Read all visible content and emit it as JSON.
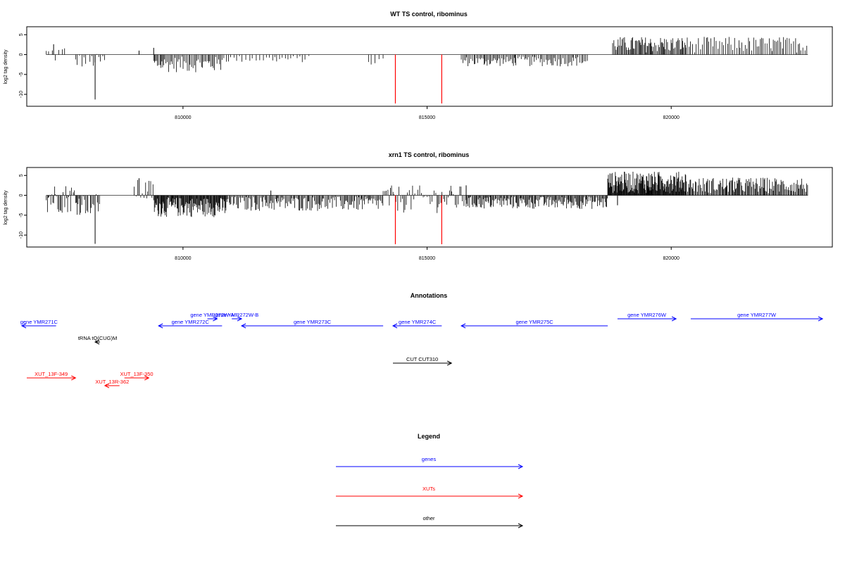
{
  "colors": {
    "genes": "#0000ff",
    "xuts": "#ff0000",
    "other": "#000000",
    "highlight": "#ff0000",
    "bars": "#000000"
  },
  "chart_data": [
    {
      "type": "bar",
      "title": "WT TS control, ribominus",
      "ylabel": "log2 tag density",
      "xlim": [
        806800,
        823300
      ],
      "ylim": [
        -13,
        7
      ],
      "x_ticks": [
        810000,
        815000,
        820000
      ],
      "x_tick_labels": [
        "810000",
        "815000",
        "820000"
      ],
      "y_ticks": [
        -10,
        -5,
        0,
        5
      ],
      "y_tick_labels": [
        "-10",
        "-5",
        "0",
        "5"
      ],
      "highlight_positions": [
        814350,
        815300
      ],
      "highlight_value": -12.3,
      "segments": [
        {
          "start": 807200,
          "end": 807600,
          "min": -2.5,
          "max": 2.5,
          "step": 55
        },
        {
          "start": 807800,
          "end": 808400,
          "min": -3.5,
          "max": 0.2,
          "step": 40
        },
        {
          "start": 809400,
          "end": 810800,
          "min": -4.5,
          "max": -0.5,
          "step": 25
        },
        {
          "start": 810800,
          "end": 812600,
          "min": -2.0,
          "max": -0.3,
          "step": 60
        },
        {
          "start": 813800,
          "end": 814100,
          "min": -3.0,
          "max": -0.5,
          "step": 60
        },
        {
          "start": 815700,
          "end": 816800,
          "min": -3.0,
          "max": -0.5,
          "step": 25
        },
        {
          "start": 816800,
          "end": 818300,
          "min": -3.0,
          "max": -0.5,
          "step": 30
        },
        {
          "start": 818800,
          "end": 820300,
          "min": 0.5,
          "max": 4.5,
          "step": 20
        },
        {
          "start": 820300,
          "end": 822800,
          "min": 0.5,
          "max": 4.5,
          "step": 35
        }
      ],
      "spikes": [
        {
          "x": 808200,
          "y": -11.3
        },
        {
          "x": 809100,
          "y": 1.0
        },
        {
          "x": 809400,
          "y": 1.7
        },
        {
          "x": 807350,
          "y": 2.6
        }
      ]
    },
    {
      "type": "bar",
      "title": "xrn1 TS control, ribominus",
      "ylabel": "log2 tag density",
      "xlim": [
        806800,
        823300
      ],
      "ylim": [
        -13,
        7
      ],
      "x_ticks": [
        810000,
        815000,
        820000
      ],
      "x_tick_labels": [
        "810000",
        "815000",
        "820000"
      ],
      "y_ticks": [
        -10,
        -5,
        0,
        5
      ],
      "y_tick_labels": [
        "-10",
        "-5",
        "0",
        "5"
      ],
      "highlight_positions": [
        814350,
        815300
      ],
      "highlight_value": -12.3,
      "segments": [
        {
          "start": 807200,
          "end": 807800,
          "min": -4.5,
          "max": 3.0,
          "step": 20
        },
        {
          "start": 807800,
          "end": 808300,
          "min": -5.0,
          "max": 0.5,
          "step": 25
        },
        {
          "start": 809000,
          "end": 809400,
          "min": -2.0,
          "max": 4.0,
          "step": 30
        },
        {
          "start": 809400,
          "end": 810900,
          "min": -5.5,
          "max": -0.5,
          "step": 12
        },
        {
          "start": 810900,
          "end": 814100,
          "min": -4.0,
          "max": -0.3,
          "step": 22
        },
        {
          "start": 814100,
          "end": 815800,
          "min": -4.5,
          "max": 2.5,
          "step": 30
        },
        {
          "start": 815800,
          "end": 818700,
          "min": -3.5,
          "max": -0.3,
          "step": 18
        },
        {
          "start": 818700,
          "end": 820300,
          "min": 0.5,
          "max": 6.0,
          "step": 10
        },
        {
          "start": 820300,
          "end": 822800,
          "min": 0.5,
          "max": 4.5,
          "step": 18
        }
      ],
      "spikes": [
        {
          "x": 808200,
          "y": -12.2
        },
        {
          "x": 809100,
          "y": 4.3
        },
        {
          "x": 811800,
          "y": 1.2
        },
        {
          "x": 815800,
          "y": 2.5
        },
        {
          "x": 818900,
          "y": -2.5
        }
      ]
    }
  ],
  "annotations": {
    "title": "Annotations",
    "features": [
      {
        "label": "gene YMR271C",
        "start": 806700,
        "end": 807400,
        "strand": "-",
        "type": "genes",
        "row": 1
      },
      {
        "label": "gene YMR272W-A",
        "start": 810500,
        "end": 810700,
        "strand": "+",
        "type": "genes",
        "row": 0
      },
      {
        "label": "gene YMR272W-B",
        "start": 811000,
        "end": 811200,
        "strand": "+",
        "type": "genes",
        "row": 0
      },
      {
        "label": "gene YMR272C",
        "start": 809500,
        "end": 810800,
        "strand": "-",
        "type": "genes",
        "row": 1
      },
      {
        "label": "gene YMR273C",
        "start": 811200,
        "end": 814100,
        "strand": "-",
        "type": "genes",
        "row": 1
      },
      {
        "label": "gene YMR274C",
        "start": 814300,
        "end": 815300,
        "strand": "-",
        "type": "genes",
        "row": 1
      },
      {
        "label": "gene YMR275C",
        "start": 815700,
        "end": 818700,
        "strand": "-",
        "type": "genes",
        "row": 1
      },
      {
        "label": "gene YMR276W",
        "start": 818900,
        "end": 820100,
        "strand": "+",
        "type": "genes",
        "row": 0
      },
      {
        "label": "gene YMR277W",
        "start": 820400,
        "end": 823100,
        "strand": "+",
        "type": "genes",
        "row": 0
      },
      {
        "label": "tRNA tQ(CUG)M",
        "start": 808200,
        "end": 808300,
        "strand": "-",
        "type": "other",
        "row": 2
      },
      {
        "label": "CUT CUT310",
        "start": 814300,
        "end": 815500,
        "strand": "+",
        "type": "other",
        "row": 3
      },
      {
        "label": "XUT_13F-349",
        "start": 806800,
        "end": 807800,
        "strand": "+",
        "type": "xuts",
        "row": 4
      },
      {
        "label": "XUT_13R-362",
        "start": 808400,
        "end": 808700,
        "strand": "-",
        "type": "xuts",
        "row": 5
      },
      {
        "label": "XUT_13F-350",
        "start": 808800,
        "end": 809300,
        "strand": "+",
        "type": "xuts",
        "row": 4
      }
    ]
  },
  "legend": {
    "title": "Legend",
    "items": [
      {
        "label": "genes",
        "type": "genes"
      },
      {
        "label": "XUTs",
        "type": "xuts"
      },
      {
        "label": "other",
        "type": "other"
      }
    ]
  }
}
